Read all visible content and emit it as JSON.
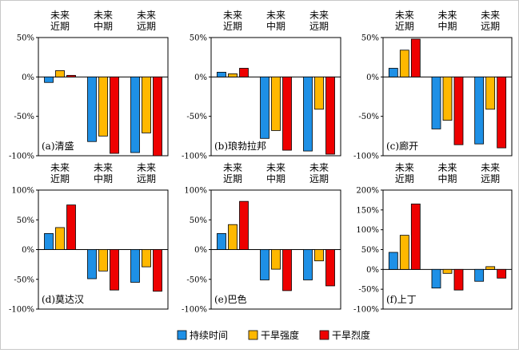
{
  "legend": [
    {
      "name": "持续时间",
      "color": "#1e90e6"
    },
    {
      "name": "干旱强度",
      "color": "#ffb800"
    },
    {
      "name": "干旱烈度",
      "color": "#ee0000"
    }
  ],
  "outline_color": "#000000",
  "chart_data": [
    {
      "type": "bar",
      "title": "(a)清盛",
      "categories": [
        [
          "未来",
          "近期"
        ],
        [
          "未来",
          "中期"
        ],
        [
          "未来",
          "远期"
        ]
      ],
      "ylim": [
        -100,
        50
      ],
      "yticks": [
        "50%",
        "0%",
        "-50%",
        "-100%"
      ],
      "series": [
        {
          "name": "持续时间",
          "values": [
            -7,
            -82,
            -96
          ]
        },
        {
          "name": "干旱强度",
          "values": [
            8,
            -75,
            -71
          ]
        },
        {
          "name": "干旱烈度",
          "values": [
            2,
            -97,
            -100
          ]
        }
      ]
    },
    {
      "type": "bar",
      "title": "(b)琅勃拉邦",
      "categories": [
        [
          "未来",
          "近期"
        ],
        [
          "未来",
          "中期"
        ],
        [
          "未来",
          "远期"
        ]
      ],
      "ylim": [
        -100,
        50
      ],
      "yticks": [
        "50%",
        "0%",
        "-50%",
        "-100%"
      ],
      "series": [
        {
          "name": "持续时间",
          "values": [
            6,
            -78,
            -94
          ]
        },
        {
          "name": "干旱强度",
          "values": [
            4,
            -68,
            -41
          ]
        },
        {
          "name": "干旱烈度",
          "values": [
            11,
            -93,
            -98
          ]
        }
      ]
    },
    {
      "type": "bar",
      "title": "(c)廊开",
      "categories": [
        [
          "未来",
          "近期"
        ],
        [
          "未来",
          "中期"
        ],
        [
          "未来",
          "远期"
        ]
      ],
      "ylim": [
        -100,
        50
      ],
      "yticks": [
        "50%",
        "0%",
        "-50%",
        "-100%"
      ],
      "series": [
        {
          "name": "持续时间",
          "values": [
            11,
            -66,
            -85
          ]
        },
        {
          "name": "干旱强度",
          "values": [
            34,
            -55,
            -41
          ]
        },
        {
          "name": "干旱烈度",
          "values": [
            48,
            -86,
            -90
          ]
        }
      ]
    },
    {
      "type": "bar",
      "title": "(d)莫达汉",
      "categories": [
        [
          "未来",
          "近期"
        ],
        [
          "未来",
          "中期"
        ],
        [
          "未来",
          "远期"
        ]
      ],
      "ylim": [
        -100,
        100
      ],
      "yticks": [
        "100%",
        "50%",
        "0%",
        "-50%",
        "-100%"
      ],
      "series": [
        {
          "name": "持续时间",
          "values": [
            27,
            -49,
            -55
          ]
        },
        {
          "name": "干旱强度",
          "values": [
            37,
            -36,
            -29
          ]
        },
        {
          "name": "干旱烈度",
          "values": [
            75,
            -68,
            -70
          ]
        }
      ]
    },
    {
      "type": "bar",
      "title": "(e)巴色",
      "categories": [
        [
          "未来",
          "近期"
        ],
        [
          "未来",
          "中期"
        ],
        [
          "未来",
          "远期"
        ]
      ],
      "ylim": [
        -100,
        100
      ],
      "yticks": [
        "100%",
        "50%",
        "0%",
        "-50%",
        "-100%"
      ],
      "series": [
        {
          "name": "持续时间",
          "values": [
            27,
            -51,
            -51
          ]
        },
        {
          "name": "干旱强度",
          "values": [
            42,
            -33,
            -19
          ]
        },
        {
          "name": "干旱烈度",
          "values": [
            81,
            -69,
            -61
          ]
        }
      ]
    },
    {
      "type": "bar",
      "title": "(f)上丁",
      "categories": [
        [
          "未来",
          "近期"
        ],
        [
          "未来",
          "中期"
        ],
        [
          "未来",
          "远期"
        ]
      ],
      "ylim": [
        -100,
        200
      ],
      "yticks": [
        "200%",
        "150%",
        "100%",
        "50%",
        "0%",
        "-50%",
        "-100%"
      ],
      "series": [
        {
          "name": "持续时间",
          "values": [
            43,
            -47,
            -30
          ]
        },
        {
          "name": "干旱强度",
          "values": [
            86,
            -10,
            7
          ]
        },
        {
          "name": "干旱烈度",
          "values": [
            165,
            -52,
            -22
          ]
        }
      ]
    }
  ]
}
